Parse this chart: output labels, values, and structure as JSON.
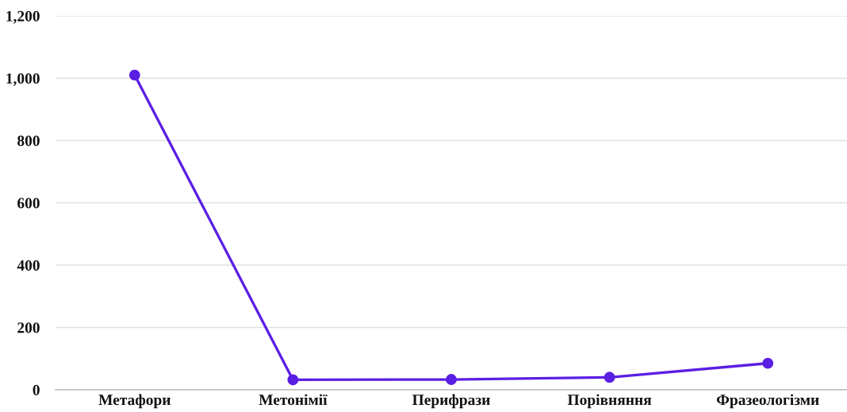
{
  "chart_data": {
    "type": "line",
    "categories": [
      "Метафори",
      "Метонімії",
      "Перифрази",
      "Порівняння",
      "Фразеологізми"
    ],
    "series": [
      {
        "color": "#5b1fe3",
        "values": [
          1010,
          32,
          33,
          40,
          85
        ]
      }
    ],
    "ylim": [
      0,
      1200
    ],
    "yticks": [
      {
        "value": 0,
        "label": "0"
      },
      {
        "value": 200,
        "label": "200"
      },
      {
        "value": 400,
        "label": "400"
      },
      {
        "value": 600,
        "label": "600"
      },
      {
        "value": 800,
        "label": "800"
      },
      {
        "value": 1000,
        "label": "1,000"
      },
      {
        "value": 1200,
        "label": "1,200"
      }
    ],
    "grid": "y",
    "marker": "circle",
    "line_style": "solid"
  }
}
